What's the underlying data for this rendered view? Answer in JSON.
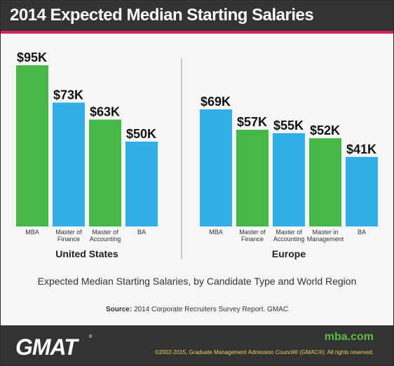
{
  "header": {
    "title": "2014 Expected Median Starting Salaries"
  },
  "colors": {
    "header_bg": "#333333",
    "accent": "#d3245b",
    "green": "#46b749",
    "blue": "#2fafe6",
    "site_green": "#5dbb46",
    "copyright_yellow": "#e8d25a"
  },
  "chart_data": [
    {
      "type": "bar",
      "region": "United States",
      "categories": [
        "MBA",
        "Master of Finance",
        "Master of Accounting",
        "BA"
      ],
      "category_lines": [
        [
          "MBA"
        ],
        [
          "Master of",
          "Finance"
        ],
        [
          "Master of",
          "Accounting"
        ],
        [
          "BA"
        ]
      ],
      "values": [
        95,
        73,
        63,
        50
      ],
      "value_labels": [
        "$95K",
        "$73K",
        "$63K",
        "$50K"
      ],
      "bar_colors": [
        "green",
        "blue",
        "green",
        "blue"
      ],
      "unit": "$K"
    },
    {
      "type": "bar",
      "region": "Europe",
      "categories": [
        "MBA",
        "Master of Finance",
        "Master of Accounting",
        "Master in Management",
        "BA"
      ],
      "category_lines": [
        [
          "MBA"
        ],
        [
          "Master of",
          "Finance"
        ],
        [
          "Master of",
          "Accounting"
        ],
        [
          "Master in",
          "Management"
        ],
        [
          "BA"
        ]
      ],
      "values": [
        69,
        57,
        55,
        52,
        41
      ],
      "value_labels": [
        "$69K",
        "$57K",
        "$55K",
        "$52K",
        "$41K"
      ],
      "bar_colors": [
        "blue",
        "green",
        "blue",
        "green",
        "blue"
      ],
      "unit": "$K"
    }
  ],
  "caption": "Expected Median Starting Salaries, by Candidate Type and World Region",
  "source": {
    "label": "Source:",
    "text": "2014 Corporate Recruiters Survey Report. GMAC"
  },
  "footer": {
    "logo": "GMAT",
    "logo_mark": "®",
    "site": "mba.com",
    "copyright": "©2002-2015, Graduate Management Admission Council® (GMAC®). All rights reserved."
  }
}
